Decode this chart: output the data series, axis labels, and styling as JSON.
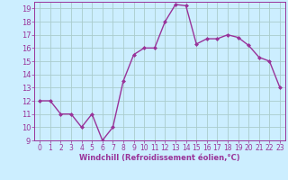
{
  "x": [
    0,
    1,
    2,
    3,
    4,
    5,
    6,
    7,
    8,
    9,
    10,
    11,
    12,
    13,
    14,
    15,
    16,
    17,
    18,
    19,
    20,
    21,
    22,
    23
  ],
  "y": [
    12,
    12,
    11,
    11,
    10,
    11,
    9,
    10,
    13.5,
    15.5,
    16,
    16,
    18,
    19.3,
    19.2,
    16.3,
    16.7,
    16.7,
    17,
    16.8,
    16.2,
    15.3,
    15,
    13
  ],
  "line_color": "#993399",
  "marker": "D",
  "marker_size": 2.0,
  "bg_color": "#cceeff",
  "grid_color": "#aacccc",
  "xlabel": "Windchill (Refroidissement éolien,°C)",
  "xlabel_color": "#993399",
  "tick_color": "#993399",
  "ylim": [
    9,
    19.5
  ],
  "xlim": [
    -0.5,
    23.5
  ],
  "yticks": [
    9,
    10,
    11,
    12,
    13,
    14,
    15,
    16,
    17,
    18,
    19
  ],
  "xticks": [
    0,
    1,
    2,
    3,
    4,
    5,
    6,
    7,
    8,
    9,
    10,
    11,
    12,
    13,
    14,
    15,
    16,
    17,
    18,
    19,
    20,
    21,
    22,
    23
  ],
  "linewidth": 1.0
}
